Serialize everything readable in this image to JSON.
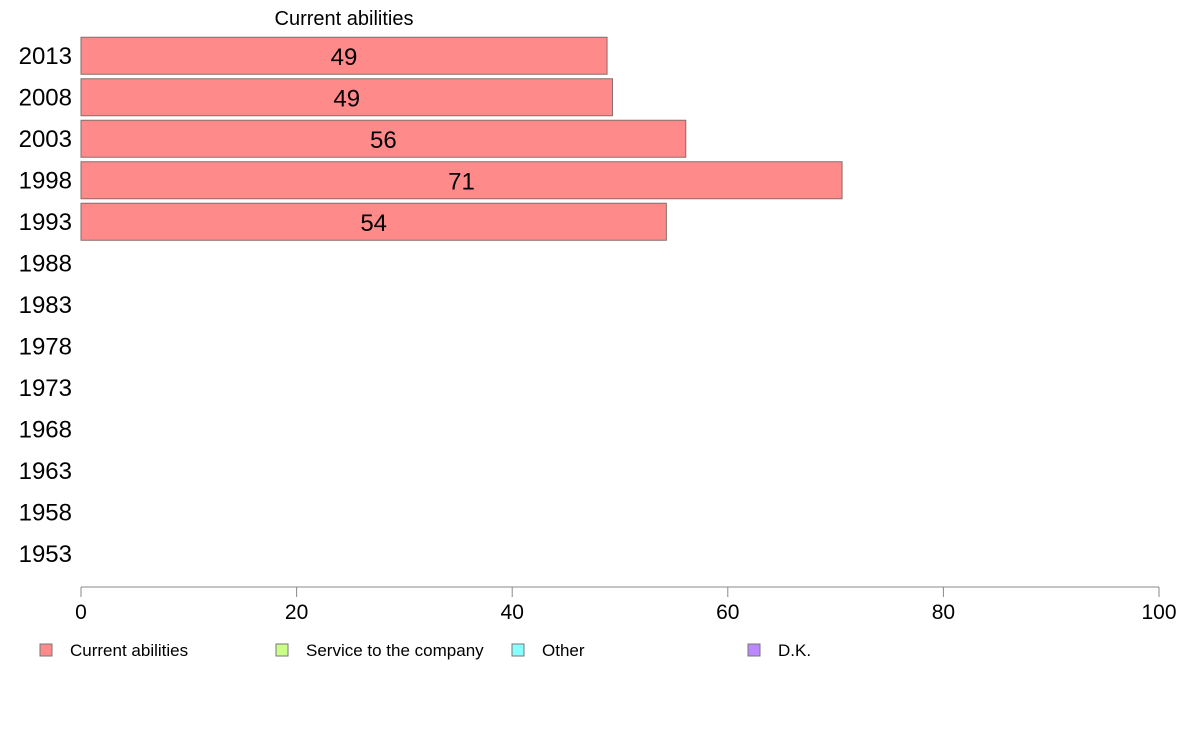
{
  "chart_data": {
    "type": "bar",
    "orientation": "horizontal",
    "title": "Current abilities",
    "categories": [
      "2013",
      "2008",
      "2003",
      "1998",
      "1993",
      "1988",
      "1983",
      "1978",
      "1973",
      "1968",
      "1963",
      "1958",
      "1953"
    ],
    "series": [
      {
        "name": "Current abilities",
        "color": "#ff8a8a",
        "values": [
          48.8,
          49.3,
          56.1,
          70.6,
          54.3,
          null,
          null,
          null,
          null,
          null,
          null,
          null,
          null
        ],
        "labels": [
          "49",
          "49",
          "56",
          "71",
          "54",
          "",
          "",
          "",
          "",
          "",
          "",
          "",
          ""
        ]
      }
    ],
    "xlim": [
      0,
      100
    ],
    "xticks": [
      "0",
      "20",
      "40",
      "60",
      "80",
      "100"
    ],
    "grid": false,
    "legend_position": "bottom",
    "legend": [
      {
        "label": "Current abilities",
        "color": "#ff8a8a"
      },
      {
        "label": "Service to the company",
        "color": "#ccff88"
      },
      {
        "label": "Other",
        "color": "#88ffff"
      },
      {
        "label": "D.K.",
        "color": "#bb88ff"
      }
    ]
  }
}
